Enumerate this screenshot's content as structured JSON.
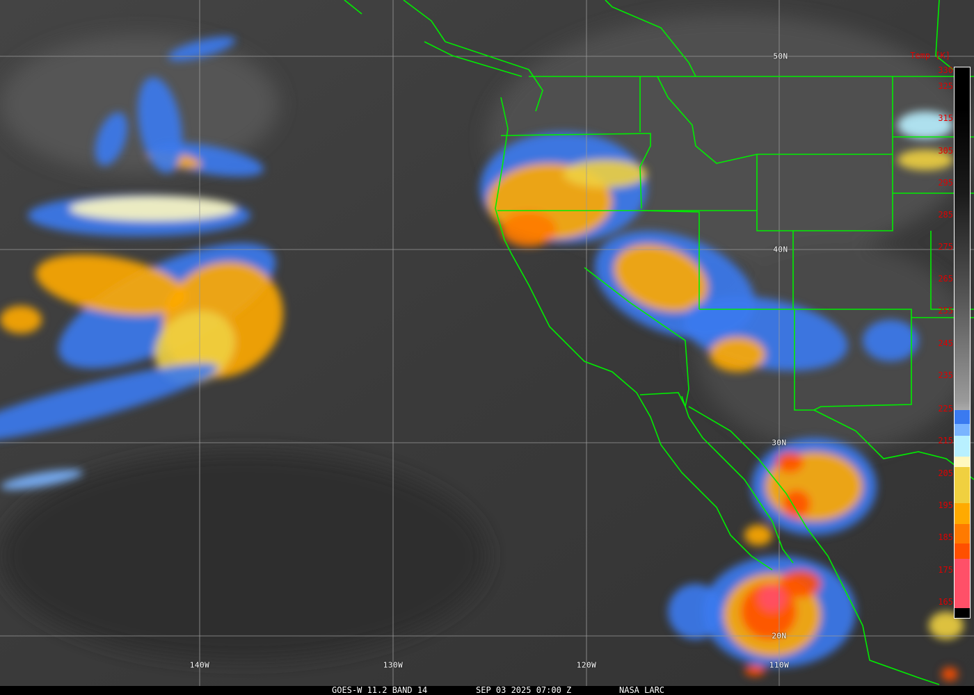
{
  "caption": {
    "satellite": "GOES-W 11.2 BAND 14",
    "datetime": "SEP 03 2025 07:00 Z",
    "credit": "NASA LARC"
  },
  "colorbar": {
    "title": "Temp [K]",
    "ticks": [
      "330",
      "325",
      "315",
      "305",
      "295",
      "285",
      "275",
      "265",
      "255",
      "245",
      "235",
      "225",
      "215",
      "205",
      "195",
      "185",
      "175",
      "165"
    ],
    "colors": {
      "cold_pink": "#ff5068",
      "red_orange": "#ff5000",
      "orange_dark": "#ff7a00",
      "orange": "#ffaa00",
      "yellow": "#f0d040",
      "pale_yellow": "#fff8c0",
      "light_cyan": "#b8f0ff",
      "light_blue": "#7ab4ff",
      "blue": "#3a7af0",
      "border_lines": "#00ff00"
    }
  },
  "grid": {
    "latitudes": [
      "50N",
      "40N",
      "30N",
      "20N"
    ],
    "longitudes": [
      "140W",
      "130W",
      "120W",
      "110W"
    ]
  }
}
